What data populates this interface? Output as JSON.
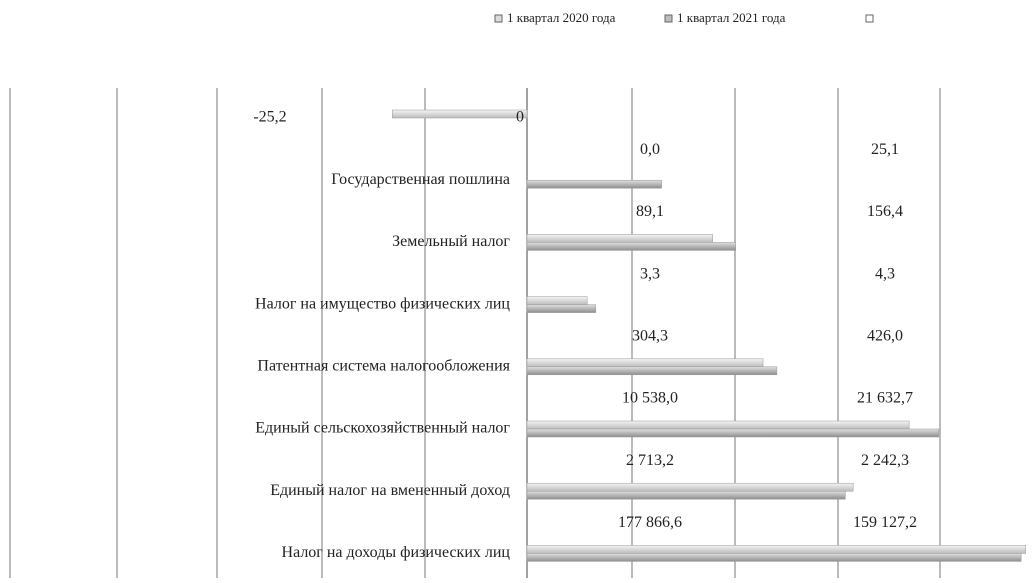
{
  "chart_data": {
    "type": "bar",
    "orientation": "horizontal",
    "xscale": "symlog",
    "categories": [
      null,
      "Государственная пошлина",
      "Земельный налог",
      "Налог на имущество физических лиц",
      "Патентная система налогообложения",
      "Единый сельскохозяйственный налог",
      "Единый налог на вмененный доход",
      "Налог на доходы физических лиц"
    ],
    "series": [
      {
        "name": "1 квартал 2020 года",
        "color": "#dcdcdc",
        "values": [
          -25.2,
          0.0,
          89.1,
          3.3,
          304.3,
          10538.0,
          2713.2,
          177866.6
        ],
        "value_labels": [
          "-25,2",
          "0,0",
          "89,1",
          "3,3",
          "304,3",
          "10 538,0",
          "2 713,2",
          "177 866,6"
        ]
      },
      {
        "name": "1 квартал 2021 года",
        "color": "#bdbdbd",
        "values": [
          0,
          25.1,
          156.4,
          4.3,
          426.0,
          21632.7,
          2242.3,
          159127.2
        ],
        "value_labels": [
          "0",
          "25,1",
          "156,4",
          "4,3",
          "426,0",
          "21 632,7",
          "2 242,3",
          "159 127,2"
        ]
      }
    ]
  }
}
